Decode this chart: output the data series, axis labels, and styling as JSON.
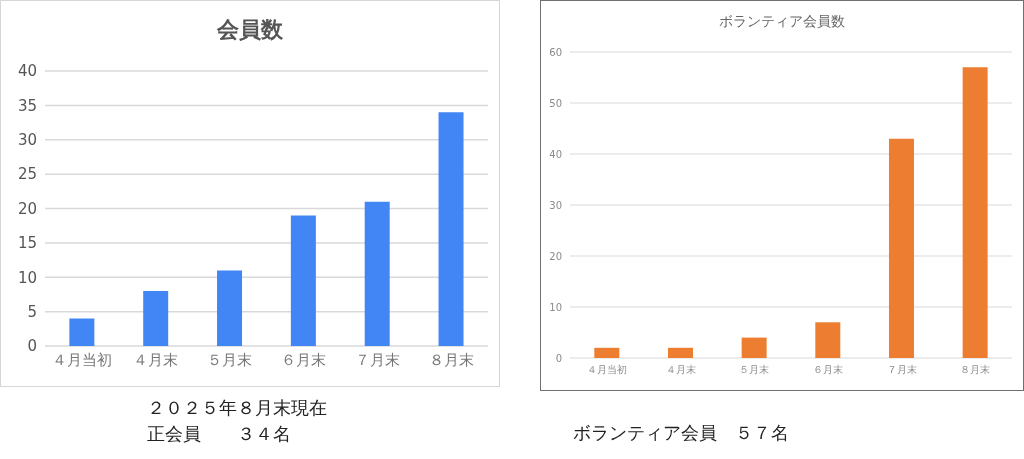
{
  "chart_data": [
    {
      "type": "bar",
      "title": "会員数",
      "categories": [
        "４月当初",
        "４月末",
        "５月末",
        "６月末",
        "７月末",
        "８月末"
      ],
      "values": [
        4,
        8,
        11,
        19,
        21,
        34
      ],
      "color": "#4285f4",
      "ylim": [
        0,
        40
      ],
      "yticks": [
        0,
        5,
        10,
        15,
        20,
        25,
        30,
        35,
        40
      ],
      "grid": "y",
      "annotations": [
        "２０２５年８月末現在",
        "正会員　　３４名"
      ]
    },
    {
      "type": "bar",
      "title": "ボランティア会員数",
      "categories": [
        "４月当初",
        "４月末",
        "５月末",
        "６月末",
        "７月末",
        "８月末"
      ],
      "values": [
        2,
        2,
        4,
        7,
        43,
        57
      ],
      "color": "#ed7d31",
      "ylim": [
        0,
        60
      ],
      "yticks": [
        0,
        10,
        20,
        30,
        40,
        50,
        60
      ],
      "grid": "y",
      "annotations": [
        "ボランティア会員　５７名"
      ]
    }
  ]
}
